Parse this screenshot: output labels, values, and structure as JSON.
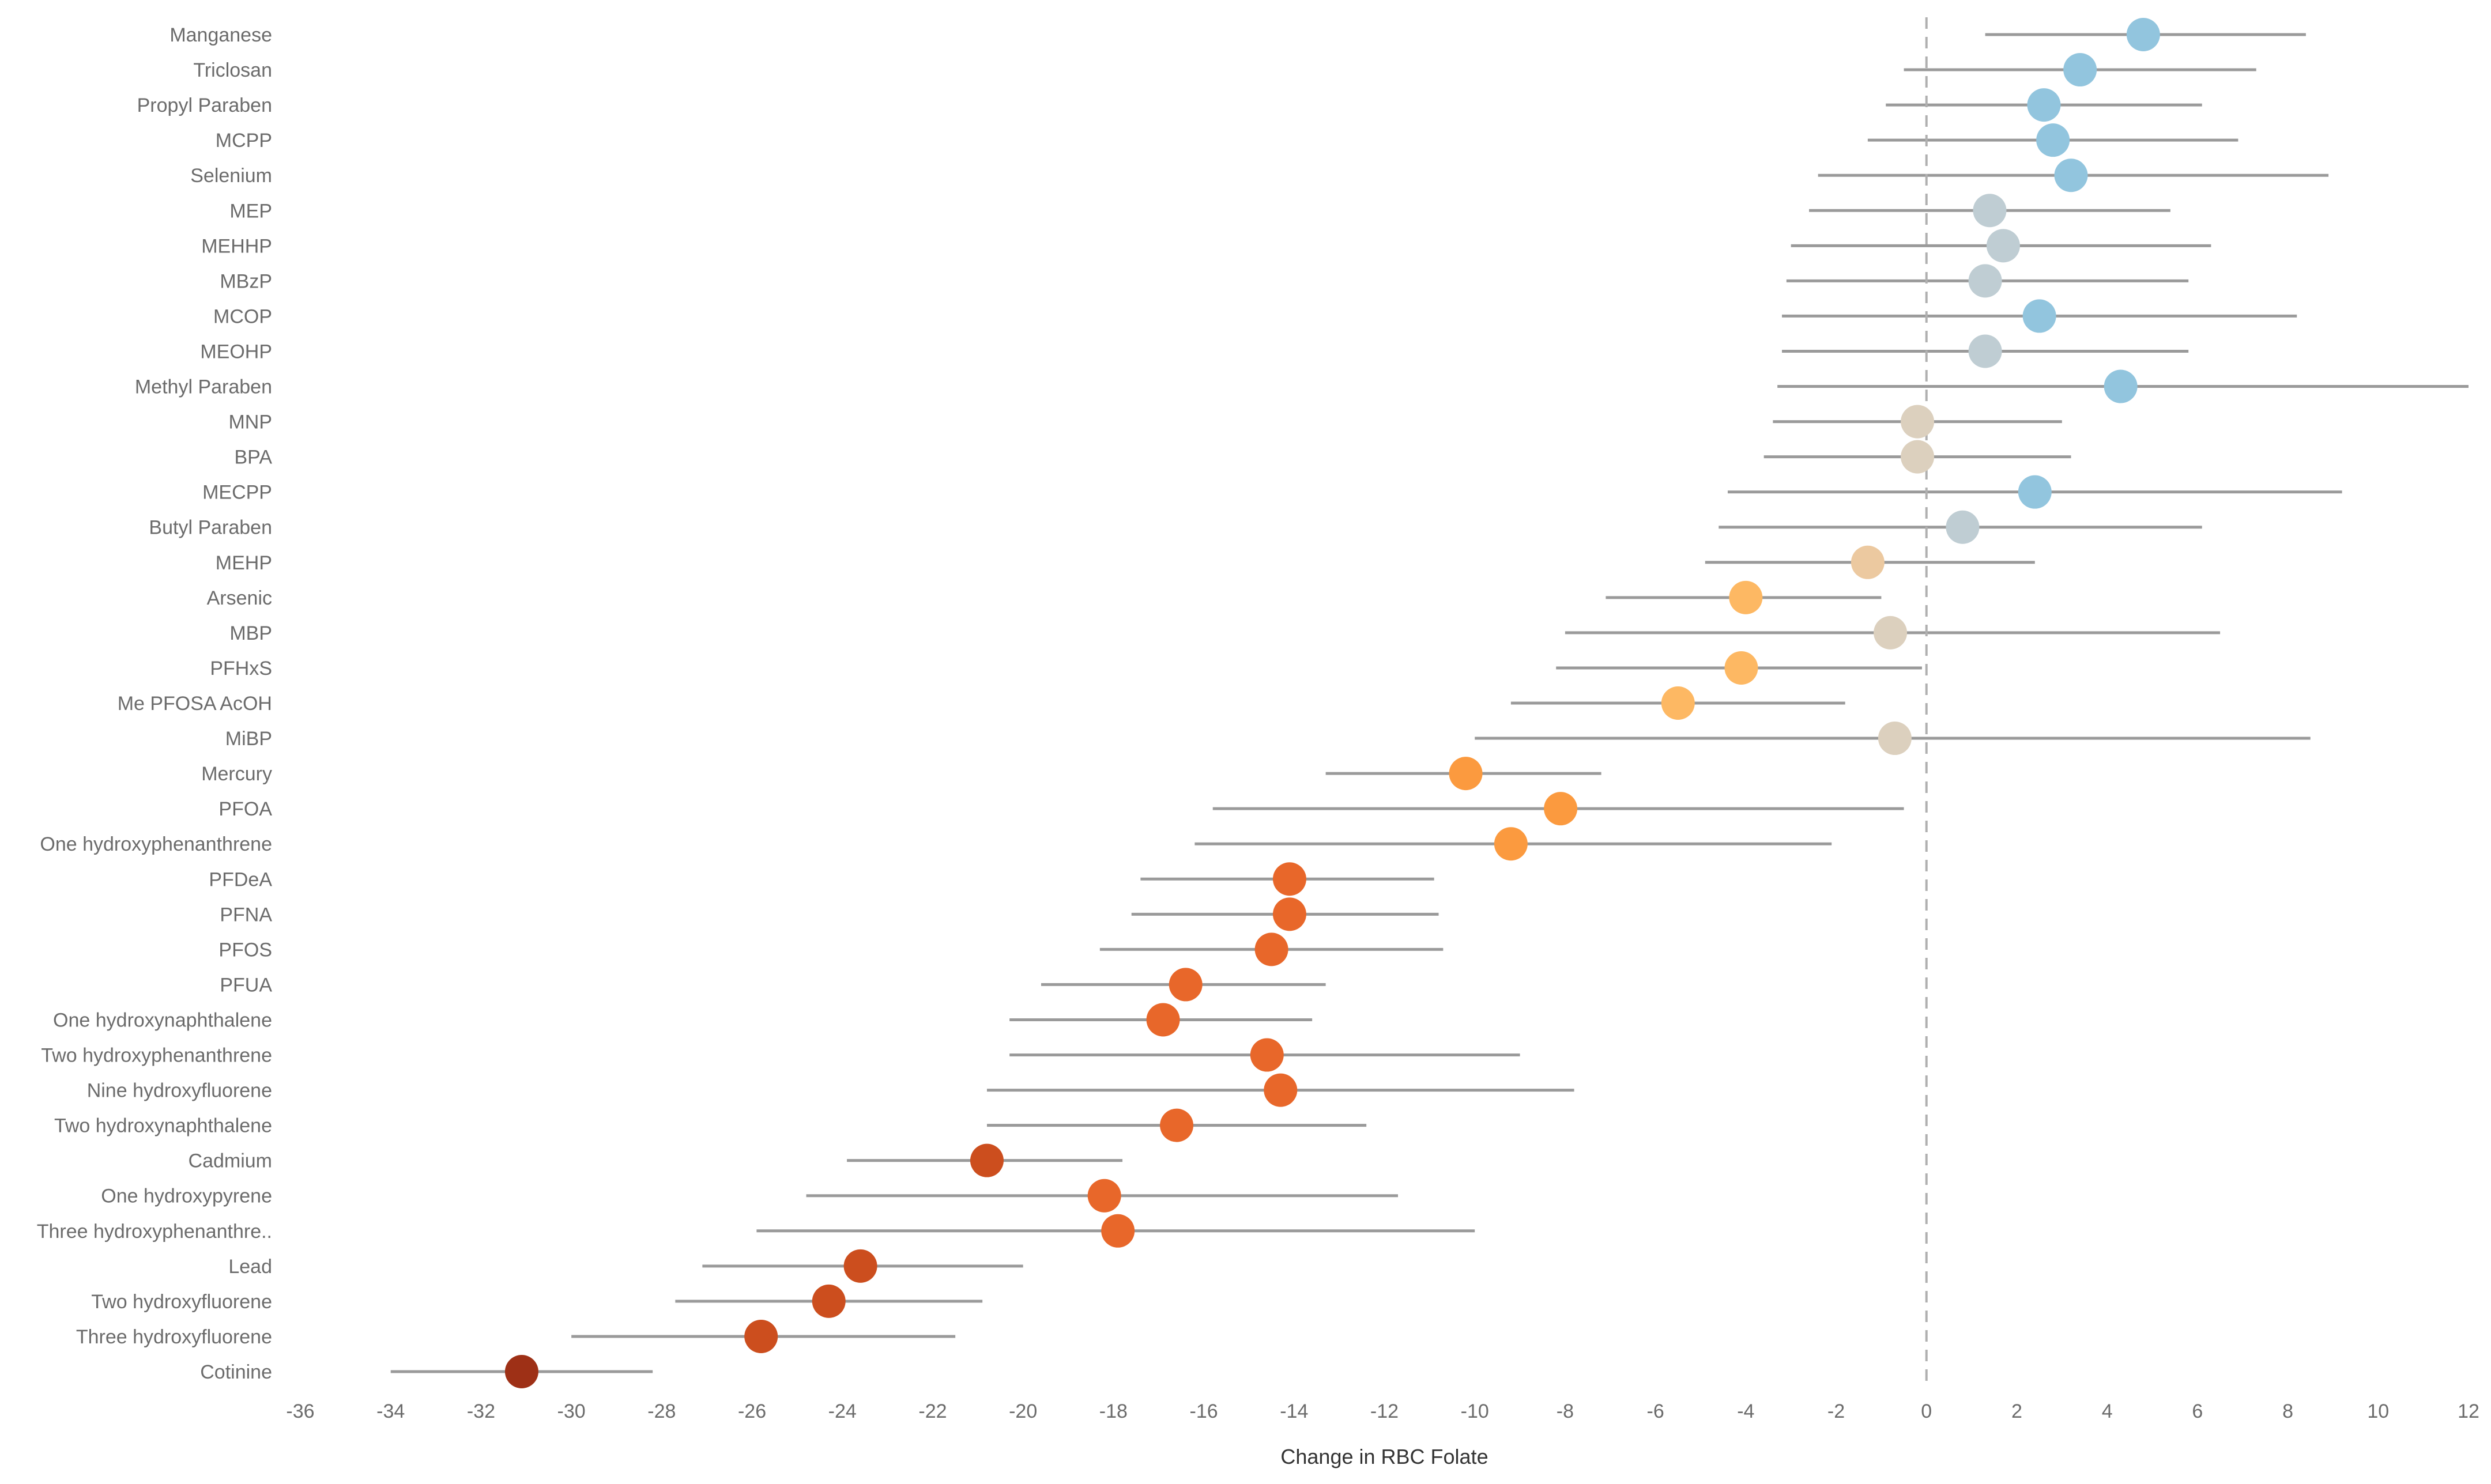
{
  "chart_data": {
    "type": "scatter",
    "subtype": "dot-plot-with-confidence-intervals",
    "title": "",
    "xlabel": "Change in RBC Folate",
    "ylabel": "",
    "xlim": [
      -36,
      12
    ],
    "xticks": [
      "-36",
      "-34",
      "-32",
      "-30",
      "-28",
      "-26",
      "-24",
      "-22",
      "-20",
      "-18",
      "-16",
      "-14",
      "-12",
      "-10",
      "-8",
      "-6",
      "-4",
      "-2",
      "0",
      "2",
      "4",
      "6",
      "8",
      "10",
      "12"
    ],
    "reference_line": 0,
    "color_scale": [
      "#92c5de",
      "#bfcdd3",
      "#dcd0be",
      "#ecc9a0",
      "#fdb863",
      "#fb9a3f",
      "#e8672a",
      "#cc4e1e",
      "#9e3016"
    ],
    "points": [
      {
        "name": "Manganese",
        "estimate": 4.8,
        "lower": 1.3,
        "upper": 8.4,
        "color": "#92c5de"
      },
      {
        "name": "Triclosan",
        "estimate": 3.4,
        "lower": -0.5,
        "upper": 7.3,
        "color": "#92c5de"
      },
      {
        "name": "Propyl Paraben",
        "estimate": 2.6,
        "lower": -0.9,
        "upper": 6.1,
        "color": "#92c5de"
      },
      {
        "name": "MCPP",
        "estimate": 2.8,
        "lower": -1.3,
        "upper": 6.9,
        "color": "#92c5de"
      },
      {
        "name": "Selenium",
        "estimate": 3.2,
        "lower": -2.4,
        "upper": 8.9,
        "color": "#92c5de"
      },
      {
        "name": "MEP",
        "estimate": 1.4,
        "lower": -2.6,
        "upper": 5.4,
        "color": "#bfcdd3"
      },
      {
        "name": "MEHHP",
        "estimate": 1.7,
        "lower": -3.0,
        "upper": 6.3,
        "color": "#bfcdd3"
      },
      {
        "name": "MBzP",
        "estimate": 1.3,
        "lower": -3.1,
        "upper": 5.8,
        "color": "#bfcdd3"
      },
      {
        "name": "MCOP",
        "estimate": 2.5,
        "lower": -3.2,
        "upper": 8.2,
        "color": "#92c5de"
      },
      {
        "name": "MEOHP",
        "estimate": 1.3,
        "lower": -3.2,
        "upper": 5.8,
        "color": "#bfcdd3"
      },
      {
        "name": "Methyl Paraben",
        "estimate": 4.3,
        "lower": -3.3,
        "upper": 12.0,
        "color": "#92c5de"
      },
      {
        "name": "MNP",
        "estimate": -0.2,
        "lower": -3.4,
        "upper": 3.0,
        "color": "#dcd0be"
      },
      {
        "name": "BPA",
        "estimate": -0.2,
        "lower": -3.6,
        "upper": 3.2,
        "color": "#dcd0be"
      },
      {
        "name": "MECPP",
        "estimate": 2.4,
        "lower": -4.4,
        "upper": 9.2,
        "color": "#92c5de"
      },
      {
        "name": "Butyl Paraben",
        "estimate": 0.8,
        "lower": -4.6,
        "upper": 6.1,
        "color": "#bfcdd3"
      },
      {
        "name": "MEHP",
        "estimate": -1.3,
        "lower": -4.9,
        "upper": 2.4,
        "color": "#ecc9a0"
      },
      {
        "name": "Arsenic",
        "estimate": -4.0,
        "lower": -7.1,
        "upper": -1.0,
        "color": "#fdb863"
      },
      {
        "name": "MBP",
        "estimate": -0.8,
        "lower": -8.0,
        "upper": 6.5,
        "color": "#dcd0be"
      },
      {
        "name": "PFHxS",
        "estimate": -4.1,
        "lower": -8.2,
        "upper": -0.1,
        "color": "#fdb863"
      },
      {
        "name": "Me PFOSA AcOH",
        "estimate": -5.5,
        "lower": -9.2,
        "upper": -1.8,
        "color": "#fdb863"
      },
      {
        "name": "MiBP",
        "estimate": -0.7,
        "lower": -10.0,
        "upper": 8.5,
        "color": "#dcd0be"
      },
      {
        "name": "Mercury",
        "estimate": -10.2,
        "lower": -13.3,
        "upper": -7.2,
        "color": "#fb9a3f"
      },
      {
        "name": "PFOA",
        "estimate": -8.1,
        "lower": -15.8,
        "upper": -0.5,
        "color": "#fb9a3f"
      },
      {
        "name": "One hydroxyphenanthrene",
        "estimate": -9.2,
        "lower": -16.2,
        "upper": -2.1,
        "color": "#fb9a3f"
      },
      {
        "name": "PFDeA",
        "estimate": -14.1,
        "lower": -17.4,
        "upper": -10.9,
        "color": "#e8672a"
      },
      {
        "name": "PFNA",
        "estimate": -14.1,
        "lower": -17.6,
        "upper": -10.8,
        "color": "#e8672a"
      },
      {
        "name": "PFOS",
        "estimate": -14.5,
        "lower": -18.3,
        "upper": -10.7,
        "color": "#e8672a"
      },
      {
        "name": "PFUA",
        "estimate": -16.4,
        "lower": -19.6,
        "upper": -13.3,
        "color": "#e8672a"
      },
      {
        "name": "One hydroxynaphthalene",
        "estimate": -16.9,
        "lower": -20.3,
        "upper": -13.6,
        "color": "#e8672a"
      },
      {
        "name": "Two hydroxyphenanthrene",
        "estimate": -14.6,
        "lower": -20.3,
        "upper": -9.0,
        "color": "#e8672a"
      },
      {
        "name": "Nine hydroxyfluorene",
        "estimate": -14.3,
        "lower": -20.8,
        "upper": -7.8,
        "color": "#e8672a"
      },
      {
        "name": "Two hydroxynaphthalene",
        "estimate": -16.6,
        "lower": -20.8,
        "upper": -12.4,
        "color": "#e8672a"
      },
      {
        "name": "Cadmium",
        "estimate": -20.8,
        "lower": -23.9,
        "upper": -17.8,
        "color": "#cc4e1e"
      },
      {
        "name": "One hydroxypyrene",
        "estimate": -18.2,
        "lower": -24.8,
        "upper": -11.7,
        "color": "#e8672a"
      },
      {
        "name": "Three hydroxyphenanthre..",
        "estimate": -17.9,
        "lower": -25.9,
        "upper": -10.0,
        "color": "#e8672a"
      },
      {
        "name": "Lead",
        "estimate": -23.6,
        "lower": -27.1,
        "upper": -20.0,
        "color": "#cc4e1e"
      },
      {
        "name": "Two hydroxyfluorene",
        "estimate": -24.3,
        "lower": -27.7,
        "upper": -20.9,
        "color": "#cc4e1e"
      },
      {
        "name": "Three hydroxyfluorene",
        "estimate": -25.8,
        "lower": -30.0,
        "upper": -21.5,
        "color": "#cc4e1e"
      },
      {
        "name": "Cotinine",
        "estimate": -31.1,
        "lower": -34.0,
        "upper": -28.2,
        "color": "#9e3016"
      }
    ]
  }
}
